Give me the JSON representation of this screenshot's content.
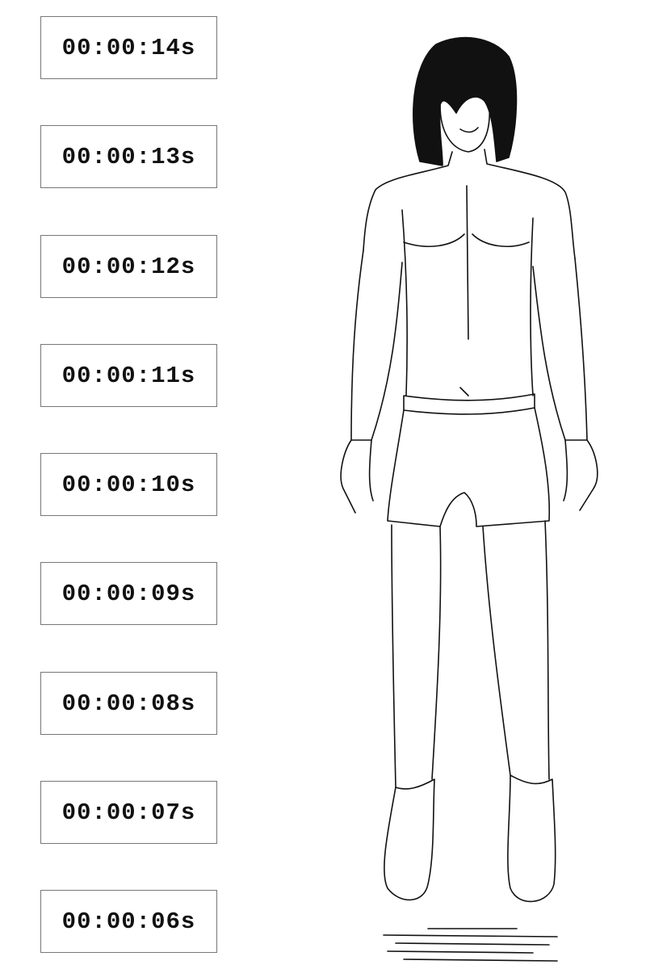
{
  "timers": [
    "00:00:14s",
    "00:00:13s",
    "00:00:12s",
    "00:00:11s",
    "00:00:10s",
    "00:00:09s",
    "00:00:08s",
    "00:00:07s",
    "00:00:06s"
  ],
  "illustration": {
    "subject": "standing-figure-line-art",
    "ink_color": "#111111"
  },
  "timer_border_color": "#777777"
}
